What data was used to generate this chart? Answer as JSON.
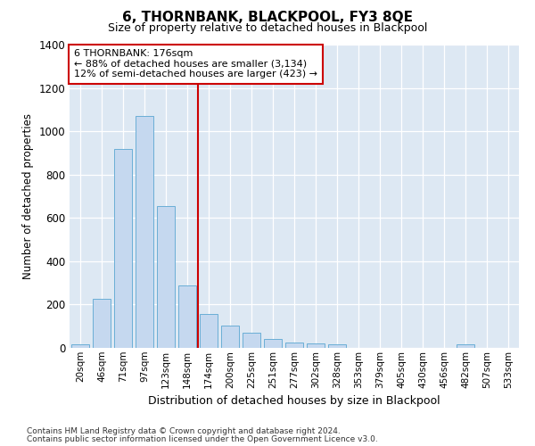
{
  "title": "6, THORNBANK, BLACKPOOL, FY3 8QE",
  "subtitle": "Size of property relative to detached houses in Blackpool",
  "xlabel": "Distribution of detached houses by size in Blackpool",
  "ylabel": "Number of detached properties",
  "footnote1": "Contains HM Land Registry data © Crown copyright and database right 2024.",
  "footnote2": "Contains public sector information licensed under the Open Government Licence v3.0.",
  "bar_color": "#c5d8ef",
  "bar_edge_color": "#6aaed6",
  "categories": [
    "20sqm",
    "46sqm",
    "71sqm",
    "97sqm",
    "123sqm",
    "148sqm",
    "174sqm",
    "200sqm",
    "225sqm",
    "251sqm",
    "277sqm",
    "302sqm",
    "328sqm",
    "353sqm",
    "379sqm",
    "405sqm",
    "430sqm",
    "456sqm",
    "482sqm",
    "507sqm",
    "533sqm"
  ],
  "values": [
    15,
    225,
    920,
    1070,
    655,
    290,
    155,
    105,
    70,
    40,
    25,
    20,
    15,
    0,
    0,
    0,
    0,
    0,
    15,
    0,
    0
  ],
  "vline_index": 6,
  "annotation_line1": "6 THORNBANK: 176sqm",
  "annotation_line2": "← 88% of detached houses are smaller (3,134)",
  "annotation_line3": "12% of semi-detached houses are larger (423) →",
  "vline_color": "#cc0000",
  "ann_box_edge_color": "#cc0000",
  "ann_box_face_color": "#ffffff",
  "ylim_max": 1400,
  "yticks": [
    0,
    200,
    400,
    600,
    800,
    1000,
    1200,
    1400
  ],
  "plot_bg_color": "#dde8f3",
  "fig_bg_color": "#ffffff"
}
